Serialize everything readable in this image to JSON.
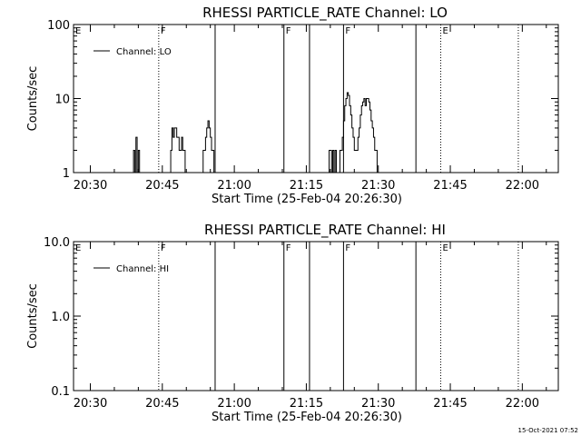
{
  "timestamp": "15-Oct-2021 07:52",
  "chart_data": [
    {
      "type": "line",
      "title": "RHESSI PARTICLE_RATE Channel: LO",
      "xlabel": "Start Time (25-Feb-04 20:26:30)",
      "ylabel": "Counts/sec",
      "y_scale": "log",
      "x_tick_labels": [
        "20:30",
        "20:45",
        "21:00",
        "21:15",
        "21:30",
        "21:45",
        "22:00"
      ],
      "y_tick_labels": [
        "1",
        "10",
        "100"
      ],
      "xlim": [
        "20:26:30",
        "22:07:30"
      ],
      "ylim": [
        1,
        100
      ],
      "grid": false,
      "legend_position": "top-left",
      "series": [
        {
          "name": "Channel: LO",
          "x": [
            "20:38:45",
            "20:39:00",
            "20:39:15",
            "20:39:30",
            "20:39:45",
            "20:40:00",
            "20:40:15",
            "20:40:30",
            "20:40:45",
            "20:46:15",
            "20:46:30",
            "20:46:45",
            "20:47:00",
            "20:47:15",
            "20:47:30",
            "20:47:45",
            "20:48:00",
            "20:48:15",
            "20:48:30",
            "20:48:45",
            "20:49:00",
            "20:49:15",
            "20:49:30",
            "20:49:45",
            "20:50:00",
            "20:50:15",
            "20:50:30",
            "20:50:45",
            "20:52:45",
            "20:53:00",
            "20:53:15",
            "20:53:30",
            "20:53:45",
            "20:54:00",
            "20:54:15",
            "20:54:30",
            "20:54:45",
            "20:55:00",
            "20:55:15",
            "20:55:30",
            "20:55:45",
            "20:56:00",
            "20:56:15",
            "20:56:30",
            "21:19:15",
            "21:19:30",
            "21:19:45",
            "21:20:00",
            "21:20:15",
            "21:20:30",
            "21:20:45",
            "21:21:00",
            "21:21:15",
            "21:21:30",
            "21:21:45",
            "21:22:00",
            "21:22:15",
            "21:22:30",
            "21:22:45",
            "21:23:00",
            "21:23:15",
            "21:23:30",
            "21:23:45",
            "21:24:00",
            "21:24:15",
            "21:24:30",
            "21:24:45",
            "21:25:00",
            "21:25:15",
            "21:25:30",
            "21:25:45",
            "21:26:00",
            "21:26:15",
            "21:26:30",
            "21:26:45",
            "21:27:00",
            "21:27:15",
            "21:27:30",
            "21:27:45",
            "21:28:00",
            "21:28:15",
            "21:28:30",
            "21:28:45",
            "21:29:00",
            "21:29:15",
            "21:29:30",
            "21:29:45",
            "21:30:00",
            "21:30:15",
            "21:30:30",
            "21:30:45",
            "21:31:00",
            "21:31:15",
            "21:31:30",
            "21:31:45",
            "21:32:00",
            "21:32:15",
            "21:32:30"
          ],
          "y": [
            1,
            2,
            1,
            3,
            1,
            2,
            1,
            1,
            1,
            1,
            1,
            2,
            4,
            3,
            4,
            4,
            3,
            3,
            2,
            2,
            3,
            2,
            2,
            1,
            1,
            1,
            1,
            1,
            1,
            1,
            1,
            2,
            2,
            3,
            4,
            5,
            4,
            3,
            2,
            2,
            1,
            1,
            1,
            1,
            1,
            1,
            2,
            2,
            1,
            2,
            1,
            2,
            1,
            1,
            1,
            2,
            2,
            3,
            5,
            8,
            10,
            12,
            11,
            8,
            6,
            4,
            3,
            2,
            2,
            2,
            3,
            4,
            6,
            8,
            9,
            10,
            8,
            10,
            10,
            9,
            7,
            5,
            4,
            3,
            2,
            2,
            1,
            1,
            1,
            1,
            1,
            1,
            1,
            1,
            1,
            1,
            1,
            1
          ]
        }
      ]
    },
    {
      "type": "line",
      "title": "RHESSI PARTICLE_RATE Channel: HI",
      "xlabel": "Start Time (25-Feb-04 20:26:30)",
      "ylabel": "Counts/sec",
      "y_scale": "log",
      "x_tick_labels": [
        "20:30",
        "20:45",
        "21:00",
        "21:15",
        "21:30",
        "21:45",
        "22:00"
      ],
      "y_tick_labels": [
        "0.1",
        "1.0",
        "10.0"
      ],
      "xlim": [
        "20:26:30",
        "22:07:30"
      ],
      "ylim": [
        0.1,
        10
      ],
      "grid": false,
      "legend_position": "top-left",
      "series": [
        {
          "name": "Channel: HI",
          "x": [],
          "y": []
        }
      ]
    }
  ],
  "markers": [
    {
      "time": "20:26:30",
      "label": "E",
      "style": "none"
    },
    {
      "time": "20:44:15",
      "label": "F",
      "style": "dotted"
    },
    {
      "time": "20:56:00",
      "label": "",
      "style": "solid"
    },
    {
      "time": "21:10:20",
      "label": "F",
      "style": "solid"
    },
    {
      "time": "21:15:40",
      "label": "",
      "style": "solid"
    },
    {
      "time": "21:22:45",
      "label": "F",
      "style": "solid"
    },
    {
      "time": "21:37:50",
      "label": "",
      "style": "solid"
    },
    {
      "time": "21:43:00",
      "label": "E",
      "style": "dotted"
    },
    {
      "time": "21:59:10",
      "label": "",
      "style": "dotted"
    }
  ]
}
